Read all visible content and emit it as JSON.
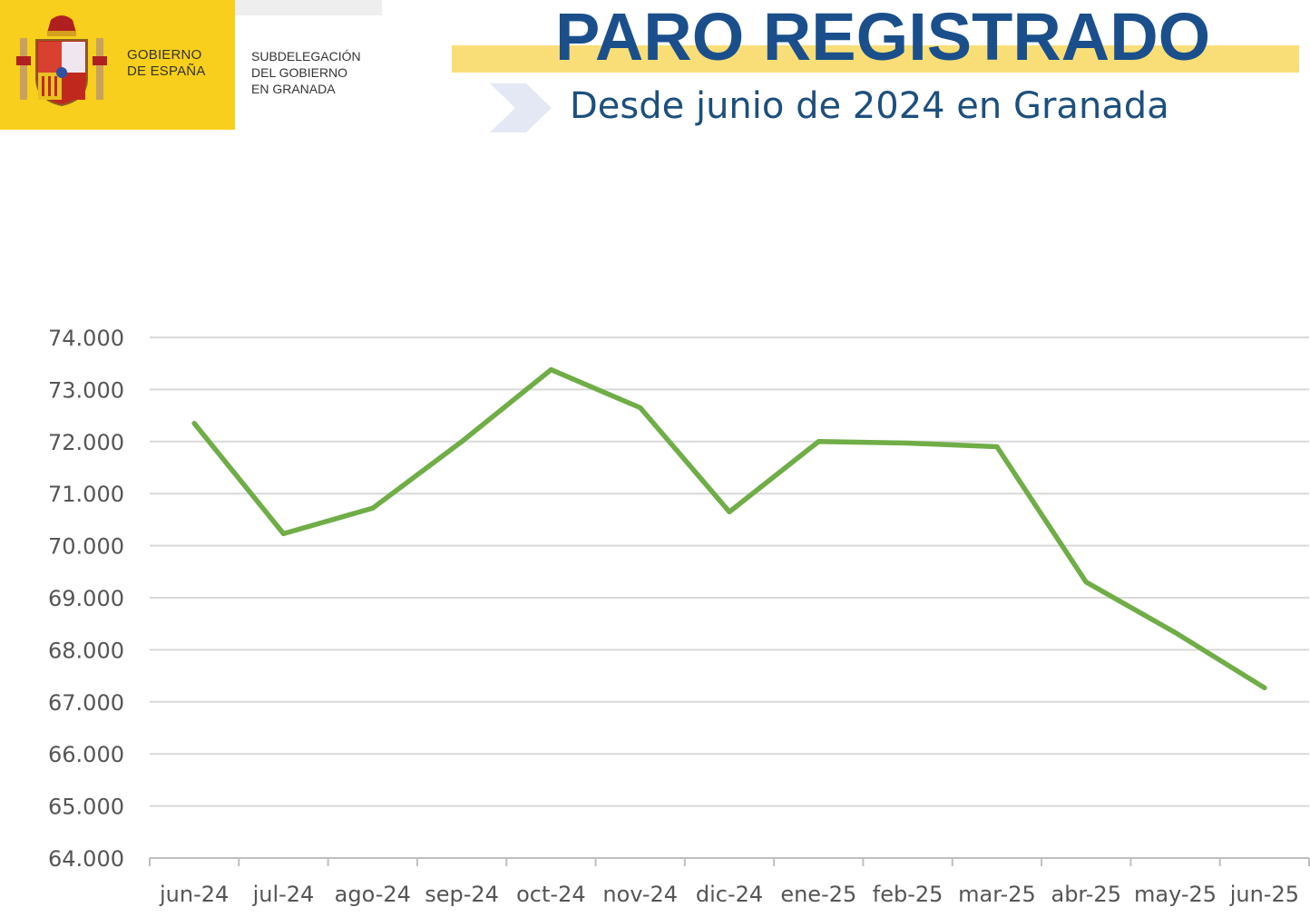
{
  "header": {
    "gov_line1": "GOBIERNO",
    "gov_line2": "DE ESPAÑA",
    "sub_line1": "SUBDELEGACIÓN",
    "sub_line2": "DEL GOBIERNO",
    "sub_line3": "EN GRANADA",
    "title": "PARO REGISTRADO",
    "subtitle": "Desde junio de 2024 en Granada"
  },
  "colors": {
    "brand_yellow": "#f8cf1c",
    "title_blue": "#1a4f8b",
    "line_green": "#70ad47",
    "grid": "#d9d9d9"
  },
  "chart_data": {
    "type": "line",
    "title": "PARO REGISTRADO",
    "subtitle": "Desde junio de 2024 en Granada",
    "categories": [
      "jun-24",
      "jul-24",
      "ago-24",
      "sep-24",
      "oct-24",
      "nov-24",
      "dic-24",
      "ene-25",
      "feb-25",
      "mar-25",
      "abr-25",
      "may-25",
      "jun-25"
    ],
    "series": [
      {
        "values": [
          72350,
          70230,
          70720,
          72000,
          73380,
          72650,
          70650,
          72000,
          71970,
          71900,
          69300,
          68330,
          67270
        ]
      }
    ],
    "ylim": [
      64000,
      74000
    ],
    "yticks": [
      74000,
      73000,
      72000,
      71000,
      70000,
      69000,
      68000,
      67000,
      66000,
      65000,
      64000
    ],
    "ytick_labels": [
      "74.000",
      "73.000",
      "72.000",
      "71.000",
      "70.000",
      "69.000",
      "68.000",
      "67.000",
      "66.000",
      "65.000",
      "64.000"
    ],
    "grid": true,
    "legend": "none"
  }
}
